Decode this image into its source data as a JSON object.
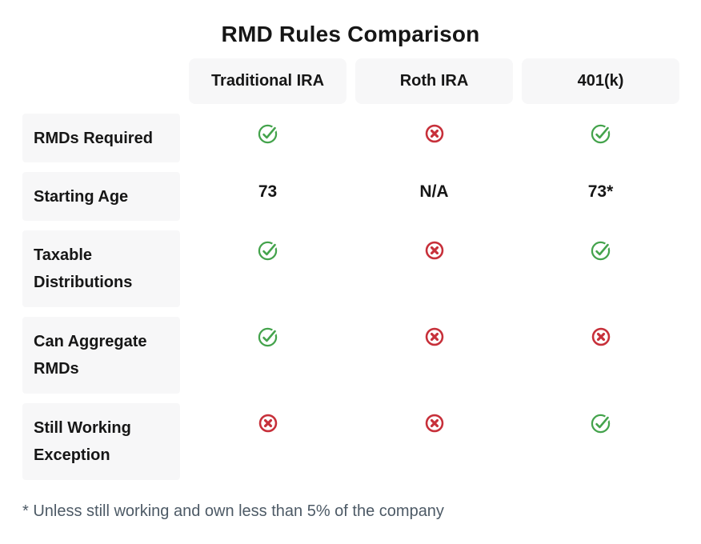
{
  "title": "RMD Rules Comparison",
  "footnote": "* Unless still working and own less than 5% of the company",
  "colors": {
    "check_green": "#44A34C",
    "cross_red": "#C7303A",
    "cell_bg": "#f7f7f8",
    "text_dark": "#161616",
    "footnote_gray": "#4d5a66"
  },
  "table": {
    "column_headers": [
      "Traditional IRA",
      "Roth IRA",
      "401(k)"
    ],
    "rows": [
      {
        "label": "RMDs Required",
        "cells": [
          {
            "type": "check"
          },
          {
            "type": "cross"
          },
          {
            "type": "check"
          }
        ]
      },
      {
        "label": "Starting Age",
        "cells": [
          {
            "type": "text",
            "value": "73"
          },
          {
            "type": "text",
            "value": "N/A"
          },
          {
            "type": "text",
            "value": "73*"
          }
        ]
      },
      {
        "label": "Taxable Distributions",
        "cells": [
          {
            "type": "check"
          },
          {
            "type": "cross"
          },
          {
            "type": "check"
          }
        ]
      },
      {
        "label": "Can Aggregate RMDs",
        "cells": [
          {
            "type": "check"
          },
          {
            "type": "cross"
          },
          {
            "type": "cross"
          }
        ]
      },
      {
        "label": "Still Working Exception",
        "cells": [
          {
            "type": "cross"
          },
          {
            "type": "cross"
          },
          {
            "type": "check"
          }
        ]
      }
    ]
  },
  "chart_data": {
    "type": "table",
    "title": "RMD Rules Comparison",
    "columns": [
      "",
      "Traditional IRA",
      "Roth IRA",
      "401(k)"
    ],
    "rows": [
      [
        "RMDs Required",
        "yes",
        "no",
        "yes"
      ],
      [
        "Starting Age",
        "73",
        "N/A",
        "73*"
      ],
      [
        "Taxable Distributions",
        "yes",
        "no",
        "yes"
      ],
      [
        "Can Aggregate RMDs",
        "yes",
        "no",
        "no"
      ],
      [
        "Still Working Exception",
        "no",
        "no",
        "yes"
      ]
    ],
    "cell_encoding": {
      "yes": "green check-circle icon",
      "no": "red x-circle icon"
    },
    "footnote": "* Unless still working and own less than 5% of the company"
  }
}
